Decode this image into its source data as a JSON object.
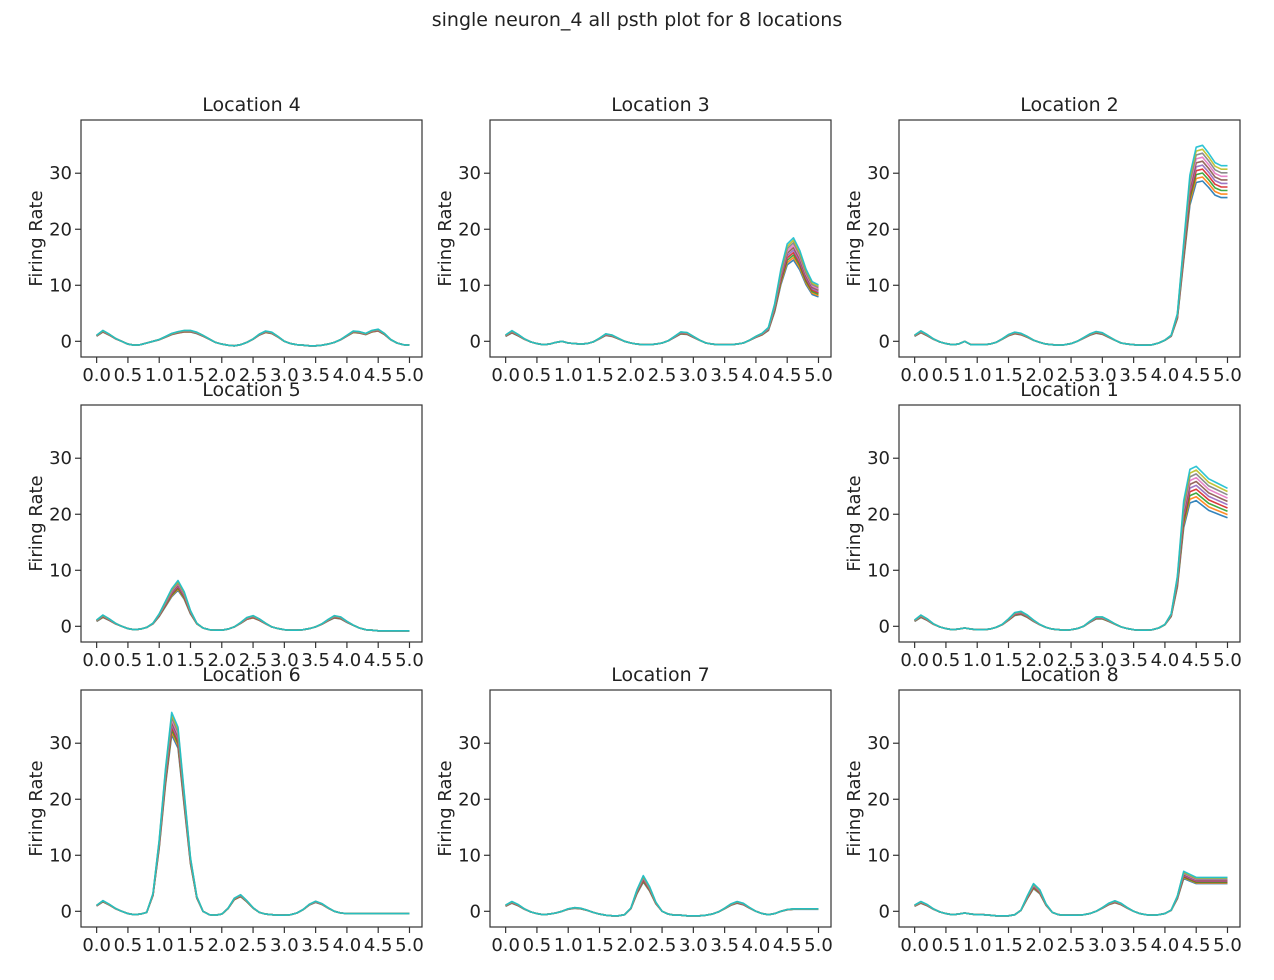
{
  "figure": {
    "title": "single neuron_4 all psth plot for 8 locations"
  },
  "chart_data": {
    "type": "line",
    "layout_grid": "3x3 with empty center panel",
    "xlabel": "",
    "ylabel": "Firing Rate",
    "xlim": [
      -0.25,
      5.2
    ],
    "ylim": [
      -2.8,
      39.5
    ],
    "x_ticks": [
      0.0,
      0.5,
      1.0,
      1.5,
      2.0,
      2.5,
      3.0,
      3.5,
      4.0,
      4.5,
      5.0
    ],
    "x_tick_labels": [
      "0.0",
      "0.5",
      "1.0",
      "1.5",
      "2.0",
      "2.5",
      "3.0",
      "3.5",
      "4.0",
      "4.5",
      "5.0"
    ],
    "y_ticks": [
      0,
      10,
      20,
      30
    ],
    "y_tick_labels": [
      "0",
      "10",
      "20",
      "30"
    ],
    "grid": false,
    "legend": "none",
    "n_traces_per_panel": 10,
    "trace_colors": [
      "#1f77b4",
      "#ff7f0e",
      "#2ca02c",
      "#d62728",
      "#9467bd",
      "#8c564b",
      "#e377c2",
      "#7f7f7f",
      "#bcbd22",
      "#17becf"
    ],
    "x": [
      0.0,
      0.1,
      0.2,
      0.3,
      0.4,
      0.5,
      0.6,
      0.7,
      0.8,
      0.9,
      1.0,
      1.1,
      1.2,
      1.3,
      1.4,
      1.5,
      1.6,
      1.7,
      1.8,
      1.9,
      2.0,
      2.1,
      2.2,
      2.3,
      2.4,
      2.5,
      2.6,
      2.7,
      2.8,
      2.9,
      3.0,
      3.1,
      3.2,
      3.3,
      3.4,
      3.5,
      3.6,
      3.7,
      3.8,
      3.9,
      4.0,
      4.1,
      4.2,
      4.3,
      4.4,
      4.5,
      4.6,
      4.7,
      4.8,
      4.9,
      5.0
    ],
    "panels": [
      {
        "title": "Location 4",
        "row": 0,
        "col": 0,
        "spread": 0.08,
        "y": [
          1.0,
          1.8,
          1.2,
          0.5,
          0.0,
          -0.5,
          -0.7,
          -0.6,
          -0.3,
          0.0,
          0.3,
          0.8,
          1.3,
          1.6,
          1.8,
          1.8,
          1.5,
          1.0,
          0.4,
          -0.2,
          -0.5,
          -0.7,
          -0.8,
          -0.6,
          -0.2,
          0.4,
          1.2,
          1.7,
          1.5,
          0.8,
          0.0,
          -0.4,
          -0.6,
          -0.7,
          -0.8,
          -0.8,
          -0.7,
          -0.5,
          -0.2,
          0.3,
          1.0,
          1.7,
          1.6,
          1.3,
          1.8,
          2.0,
          1.3,
          0.3,
          -0.3,
          -0.6,
          -0.7
        ]
      },
      {
        "title": "Location 3",
        "row": 0,
        "col": 1,
        "spread": 0.12,
        "y": [
          1.0,
          1.7,
          1.1,
          0.4,
          -0.1,
          -0.4,
          -0.6,
          -0.5,
          -0.2,
          0.0,
          -0.3,
          -0.4,
          -0.5,
          -0.4,
          -0.1,
          0.5,
          1.2,
          1.0,
          0.5,
          0.0,
          -0.3,
          -0.5,
          -0.6,
          -0.6,
          -0.5,
          -0.3,
          0.1,
          0.8,
          1.5,
          1.4,
          0.8,
          0.2,
          -0.3,
          -0.5,
          -0.6,
          -0.6,
          -0.6,
          -0.5,
          -0.3,
          0.2,
          0.8,
          1.3,
          2.2,
          6.0,
          11.5,
          15.5,
          16.5,
          14.5,
          11.5,
          9.5,
          9.0
        ]
      },
      {
        "title": "Location 2",
        "row": 0,
        "col": 2,
        "spread": 0.1,
        "y": [
          1.0,
          1.7,
          1.1,
          0.4,
          -0.1,
          -0.4,
          -0.6,
          -0.5,
          0.0,
          -0.6,
          -0.6,
          -0.6,
          -0.5,
          -0.2,
          0.4,
          1.1,
          1.5,
          1.3,
          0.8,
          0.2,
          -0.2,
          -0.5,
          -0.6,
          -0.7,
          -0.6,
          -0.4,
          0.0,
          0.6,
          1.2,
          1.6,
          1.4,
          0.8,
          0.2,
          -0.3,
          -0.5,
          -0.6,
          -0.7,
          -0.7,
          -0.6,
          -0.3,
          0.2,
          1.0,
          4.5,
          16.0,
          27.0,
          31.5,
          31.8,
          30.5,
          29.0,
          28.5,
          28.5
        ]
      },
      {
        "title": "Location 5",
        "row": 1,
        "col": 0,
        "spread": 0.12,
        "y": [
          1.0,
          1.8,
          1.2,
          0.5,
          0.0,
          -0.4,
          -0.6,
          -0.5,
          -0.2,
          0.5,
          2.0,
          4.0,
          6.0,
          7.3,
          5.5,
          2.5,
          0.5,
          -0.3,
          -0.6,
          -0.7,
          -0.7,
          -0.5,
          -0.1,
          0.6,
          1.4,
          1.7,
          1.2,
          0.5,
          -0.1,
          -0.4,
          -0.6,
          -0.7,
          -0.7,
          -0.6,
          -0.4,
          -0.1,
          0.4,
          1.1,
          1.7,
          1.5,
          0.8,
          0.2,
          -0.3,
          -0.6,
          -0.7,
          -0.8,
          -0.8,
          -0.8,
          -0.8,
          -0.8,
          -0.8
        ]
      },
      {
        "title": "Location 1",
        "row": 1,
        "col": 2,
        "spread": 0.12,
        "y": [
          1.0,
          1.8,
          1.2,
          0.4,
          -0.1,
          -0.4,
          -0.6,
          -0.5,
          -0.3,
          -0.5,
          -0.6,
          -0.6,
          -0.5,
          -0.2,
          0.3,
          1.2,
          2.2,
          2.4,
          1.8,
          1.0,
          0.3,
          -0.2,
          -0.5,
          -0.6,
          -0.7,
          -0.6,
          -0.4,
          0.0,
          0.8,
          1.5,
          1.5,
          1.0,
          0.4,
          -0.1,
          -0.4,
          -0.6,
          -0.7,
          -0.7,
          -0.6,
          -0.3,
          0.3,
          2.0,
          8.0,
          20.0,
          25.0,
          25.5,
          24.5,
          23.5,
          23.0,
          22.5,
          22.0
        ]
      },
      {
        "title": "Location 6",
        "row": 2,
        "col": 0,
        "spread": 0.06,
        "y": [
          1.0,
          1.8,
          1.2,
          0.5,
          0.0,
          -0.4,
          -0.6,
          -0.5,
          -0.2,
          3.0,
          12.0,
          24.0,
          33.5,
          31.0,
          20.0,
          9.0,
          2.5,
          0.0,
          -0.6,
          -0.7,
          -0.5,
          0.5,
          2.2,
          2.8,
          1.8,
          0.6,
          -0.2,
          -0.5,
          -0.6,
          -0.7,
          -0.7,
          -0.6,
          -0.3,
          0.3,
          1.2,
          1.7,
          1.3,
          0.6,
          0.0,
          -0.3,
          -0.4,
          -0.4,
          -0.4,
          -0.4,
          -0.4,
          -0.4,
          -0.4,
          -0.4,
          -0.4,
          -0.4,
          -0.4
        ]
      },
      {
        "title": "Location 7",
        "row": 2,
        "col": 1,
        "spread": 0.1,
        "y": [
          1.0,
          1.6,
          1.1,
          0.4,
          -0.1,
          -0.4,
          -0.6,
          -0.5,
          -0.3,
          0.0,
          0.4,
          0.6,
          0.5,
          0.2,
          -0.2,
          -0.5,
          -0.7,
          -0.8,
          -0.8,
          -0.6,
          0.5,
          3.5,
          5.8,
          4.0,
          1.5,
          0.0,
          -0.5,
          -0.7,
          -0.7,
          -0.8,
          -0.8,
          -0.8,
          -0.7,
          -0.5,
          -0.1,
          0.5,
          1.2,
          1.6,
          1.3,
          0.6,
          0.0,
          -0.4,
          -0.6,
          -0.4,
          0.0,
          0.3,
          0.4,
          0.4,
          0.4,
          0.4,
          0.4
        ]
      },
      {
        "title": "Location 8",
        "row": 2,
        "col": 2,
        "spread": 0.1,
        "y": [
          1.0,
          1.6,
          1.1,
          0.4,
          -0.1,
          -0.4,
          -0.6,
          -0.5,
          -0.3,
          -0.5,
          -0.6,
          -0.6,
          -0.7,
          -0.8,
          -0.8,
          -0.8,
          -0.6,
          0.2,
          2.5,
          4.5,
          3.5,
          1.2,
          -0.2,
          -0.6,
          -0.7,
          -0.7,
          -0.7,
          -0.6,
          -0.4,
          0.0,
          0.6,
          1.3,
          1.7,
          1.3,
          0.6,
          0.0,
          -0.4,
          -0.6,
          -0.7,
          -0.6,
          -0.4,
          0.2,
          2.5,
          6.5,
          6.0,
          5.5,
          5.5,
          5.5,
          5.5,
          5.5,
          5.5
        ]
      }
    ]
  }
}
